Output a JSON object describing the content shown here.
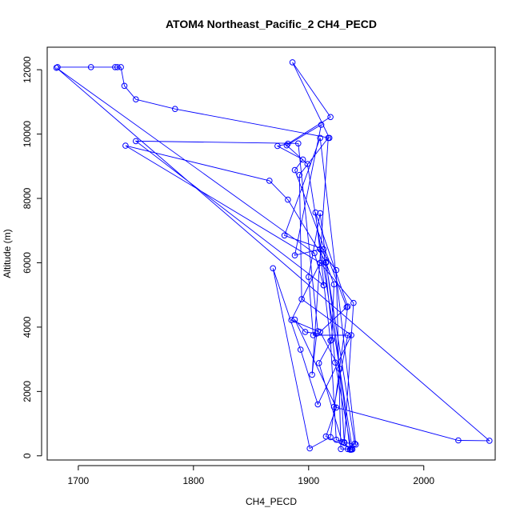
{
  "chart_data": {
    "type": "line",
    "title": "ATOM4 Northeast_Pacific_2 CH4_PECD",
    "xlabel": "CH4_PECD",
    "ylabel": "Altitude (m)",
    "xlim": [
      1673,
      2062
    ],
    "ylim": [
      -130,
      12700
    ],
    "xticks": [
      1700,
      1800,
      1900,
      2000
    ],
    "yticks": [
      0,
      2000,
      4000,
      6000,
      8000,
      10000,
      12000
    ],
    "grid": false,
    "legend": "none",
    "line_color": "#0000ff",
    "marker": "open-circle",
    "series": [
      {
        "points": [
          [
            1682,
            12080
          ],
          [
            1711,
            12080
          ],
          [
            1732,
            12080
          ],
          [
            1734,
            12080
          ],
          [
            1737,
            12080
          ],
          [
            1740,
            11500
          ],
          [
            1750,
            11080
          ],
          [
            1784,
            10780
          ],
          [
            1918,
            9880
          ],
          [
            1886,
            12230
          ],
          [
            1919,
            10530
          ],
          [
            1882,
            9700
          ],
          [
            1873,
            9630
          ],
          [
            1895,
            9210
          ],
          [
            1888,
            8880
          ],
          [
            1933,
            4620
          ],
          [
            1910,
            3850
          ],
          [
            1927,
            2700
          ],
          [
            1931,
            400
          ],
          [
            1936,
            200
          ],
          [
            1938,
            200
          ],
          [
            1899,
            9070
          ],
          [
            1881,
            9650
          ],
          [
            1911,
            10290
          ],
          [
            1888,
            6230
          ],
          [
            1910,
            6420
          ],
          [
            1924,
            5770
          ],
          [
            1928,
            210
          ],
          [
            1937,
            220
          ],
          [
            1915,
            600
          ],
          [
            1924,
            1500
          ],
          [
            1888,
            4230
          ],
          [
            1897,
            3850
          ],
          [
            1907,
            3800
          ],
          [
            1903,
            2520
          ],
          [
            1917,
            9880
          ],
          [
            1892,
            8730
          ],
          [
            1894,
            4870
          ],
          [
            1937,
            3750
          ],
          [
            1908,
            1600
          ],
          [
            1893,
            3300
          ],
          [
            1869,
            5830
          ],
          [
            1901,
            230
          ],
          [
            1919,
            580
          ],
          [
            1934,
            4640
          ],
          [
            1906,
            7560
          ],
          [
            1919,
            3580
          ],
          [
            1924,
            500
          ],
          [
            1931,
            420
          ],
          [
            1939,
            4750
          ],
          [
            1910,
            6000
          ],
          [
            1915,
            6000
          ],
          [
            1922,
            5330
          ],
          [
            1920,
            3600
          ],
          [
            1909,
            2880
          ],
          [
            1929,
            430
          ],
          [
            1941,
            350
          ],
          [
            1910,
            9880
          ],
          [
            1879,
            6850
          ],
          [
            1913,
            6420
          ],
          [
            1923,
            2900
          ],
          [
            1937,
            190
          ],
          [
            1934,
            210
          ],
          [
            1940,
            380
          ],
          [
            1915,
            6020
          ],
          [
            1882,
            7960
          ],
          [
            1866,
            8550
          ],
          [
            1741,
            9640
          ],
          [
            1910,
            6000
          ],
          [
            1885,
            4220
          ],
          [
            1908,
            3870
          ],
          [
            1891,
            9710
          ],
          [
            1750,
            9780
          ],
          [
            1913,
            5300
          ],
          [
            1913,
            5300
          ],
          [
            1905,
            6300
          ],
          [
            1681,
            12060
          ],
          [
            2057,
            470
          ],
          [
            2030,
            480
          ],
          [
            1922,
            1520
          ],
          [
            1934,
            3750
          ],
          [
            1904,
            3750
          ],
          [
            1900,
            5560
          ],
          [
            1910,
            7540
          ],
          [
            1936,
            190
          ]
        ]
      }
    ]
  }
}
